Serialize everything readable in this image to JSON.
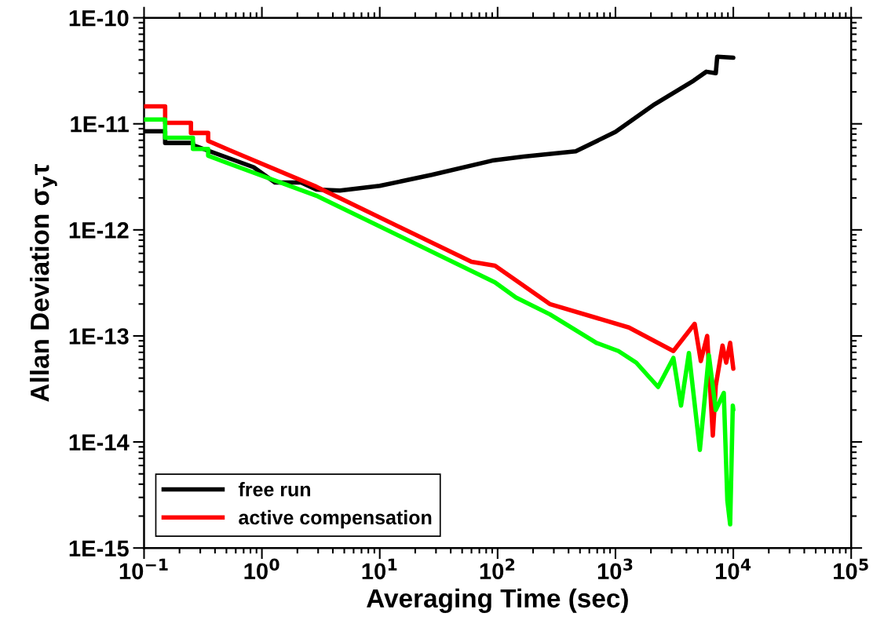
{
  "chart_data": {
    "type": "line",
    "xlabel": "Averaging Time (sec)",
    "ylabel": "Allan Deviation σ$_{y}$τ",
    "log": "xy",
    "xlim": [
      0.1,
      100000
    ],
    "xticks": [
      {
        "value": 0.1,
        "label": "10$^{−1}$"
      },
      {
        "value": 1,
        "label": "10$^{0}$"
      },
      {
        "value": 10,
        "label": "10$^{1}$"
      },
      {
        "value": 100,
        "label": "10$^{2}$"
      },
      {
        "value": 1000,
        "label": "10$^{3}$"
      },
      {
        "value": 10000,
        "label": "10$^{4}$"
      },
      {
        "value": 100000,
        "label": "10$^{5}$"
      }
    ],
    "ylim": [
      1e-15,
      1e-10
    ],
    "yticks": [
      {
        "value": 1e-15,
        "label": "1E-15"
      },
      {
        "value": 1e-14,
        "label": "1E-14"
      },
      {
        "value": 1e-13,
        "label": "1E-13"
      },
      {
        "value": 1e-12,
        "label": "1E-12"
      },
      {
        "value": 1e-11,
        "label": "1E-11"
      },
      {
        "value": 1e-10,
        "label": "1E-10"
      }
    ],
    "legend": "bottom left",
    "grid": false,
    "marker": "none",
    "line_style": "solid",
    "series": [
      {
        "name": "free run",
        "color": "#000000",
        "x": [
          0.1,
          0.151,
          0.151,
          0.26,
          0.26,
          0.85,
          1.29,
          2.15,
          2.9,
          4.6,
          10,
          27.6,
          90,
          166,
          460,
          1000,
          2150,
          4600,
          5900,
          7100,
          7300,
          10000
        ],
        "values": [
          8.5e-12,
          8.5e-12,
          6.6e-12,
          6.6e-12,
          6.3e-12,
          3.9e-12,
          2.8e-12,
          2.8e-12,
          2.4e-12,
          2.35e-12,
          2.6e-12,
          3.3e-12,
          4.5e-12,
          4.9e-12,
          5.5e-12,
          8.4e-12,
          1.53e-11,
          2.55e-11,
          3.1e-11,
          3e-11,
          4.3e-11,
          4.2e-11
        ]
      },
      {
        "name": "active compensation",
        "color": "#ff0000",
        "x": [
          0.1,
          0.151,
          0.151,
          0.25,
          0.25,
          0.35,
          0.35,
          0.54,
          2.9,
          60,
          95,
          277,
          1300,
          3100,
          4700,
          5300,
          6000,
          6700,
          7100,
          8100,
          8700,
          9400,
          10000
        ],
        "values": [
          1.46e-11,
          1.46e-11,
          1.02e-11,
          1.02e-11,
          8.2e-12,
          8.2e-12,
          6.9e-12,
          5.6e-12,
          2.55e-12,
          5e-13,
          4.6e-13,
          2e-13,
          1.2e-13,
          7.2e-14,
          1.3e-13,
          5.8e-14,
          1e-13,
          1.15e-14,
          3.4e-14,
          8.1e-14,
          5.6e-14,
          8.6e-14,
          4.9e-14
        ]
      },
      {
        "color": "#00ff00",
        "x": [
          0.1,
          0.151,
          0.151,
          0.26,
          0.26,
          0.35,
          0.35,
          0.5,
          2.9,
          95,
          143,
          277,
          690,
          1060,
          1500,
          2300,
          3100,
          3600,
          4200,
          5200,
          6200,
          7100,
          8300,
          8900,
          9400,
          9900,
          10000
        ],
        "values": [
          1.1e-11,
          1.1e-11,
          7.4e-12,
          7.4e-12,
          5.8e-12,
          5.8e-12,
          5e-12,
          4.3e-12,
          2.1e-12,
          3.2e-13,
          2.3e-13,
          1.6e-13,
          8.6e-14,
          7.2e-14,
          5.6e-14,
          3.3e-14,
          6.2e-14,
          2.2e-14,
          6.9e-14,
          8.4e-15,
          6.6e-14,
          2e-14,
          2.9e-14,
          2.8e-15,
          1.67e-15,
          2.2e-14,
          2e-14
        ]
      }
    ]
  }
}
